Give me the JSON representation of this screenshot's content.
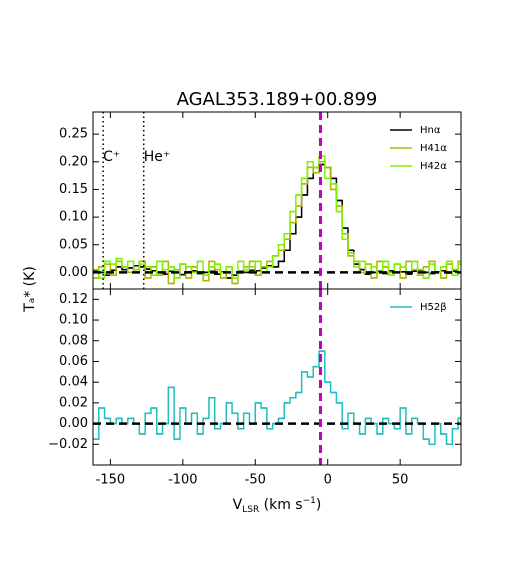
{
  "chart_data": [
    {
      "type": "step",
      "title": "AGAL353.189+00.899",
      "y_label": "Tₐ* (K)",
      "xlim": [
        -162,
        92
      ],
      "ylim": [
        -0.03,
        0.29
      ],
      "xticks": [
        -150,
        -100,
        -50,
        0,
        50
      ],
      "yticks": [
        {
          "value": 0,
          "label": "0.00"
        },
        {
          "value": 0.05,
          "label": "0.05"
        },
        {
          "value": 0.1,
          "label": "0.10"
        },
        {
          "value": 0.15,
          "label": "0.15"
        },
        {
          "value": 0.2,
          "label": "0.20"
        },
        {
          "value": 0.25,
          "label": "0.25"
        }
      ],
      "legend": "upper right",
      "vlines": [
        {
          "x": -155,
          "label": "C⁺"
        },
        {
          "x": -127,
          "label": "He⁺"
        }
      ],
      "reference_x": -5,
      "reference_y": 0,
      "x": [
        -160,
        -156,
        -152,
        -148,
        -144,
        -140,
        -136,
        -132,
        -128,
        -124,
        -120,
        -116,
        -112,
        -108,
        -104,
        -100,
        -96,
        -92,
        -88,
        -84,
        -80,
        -76,
        -72,
        -68,
        -64,
        -60,
        -56,
        -52,
        -48,
        -44,
        -40,
        -36,
        -32,
        -28,
        -24,
        -20,
        -16,
        -12,
        -8,
        -4,
        0,
        4,
        8,
        12,
        16,
        20,
        24,
        28,
        32,
        36,
        40,
        44,
        48,
        52,
        56,
        60,
        64,
        68,
        72,
        76,
        80,
        84,
        88,
        92
      ],
      "series": [
        {
          "name": "Hnα",
          "color": "#000000",
          "values": [
            0.003,
            0.0,
            -0.005,
            0.004,
            0.01,
            0.005,
            0.008,
            0.012,
            0.01,
            0.006,
            0.003,
            0.0,
            -0.003,
            0.002,
            0.0,
            -0.004,
            0.001,
            0.003,
            -0.002,
            0.0,
            0.002,
            -0.003,
            0.001,
            -0.01,
            -0.005,
            0.002,
            0.0,
            0.004,
            0.003,
            0.008,
            0.012,
            0.01,
            0.02,
            0.04,
            0.07,
            0.1,
            0.14,
            0.17,
            0.19,
            0.195,
            0.19,
            0.17,
            0.13,
            0.08,
            0.04,
            0.015,
            0.005,
            -0.003,
            0.0,
            0.002,
            -0.002,
            0.003,
            0.0,
            0.001,
            -0.003,
            0.002,
            0.004,
            0.0,
            -0.002,
            0.001,
            0.003,
            -0.001,
            0.002,
            0.0
          ]
        },
        {
          "name": "H41α",
          "color": "#b5b500",
          "values": [
            -0.01,
            0.01,
            0.015,
            -0.005,
            0.02,
            0.01,
            0.0,
            0.005,
            0.02,
            -0.01,
            0.01,
            -0.005,
            0.02,
            -0.02,
            0.005,
            0.015,
            -0.01,
            0.01,
            0.0,
            -0.015,
            0.02,
            0.005,
            -0.01,
            0.01,
            -0.02,
            0.0,
            0.01,
            0.02,
            -0.005,
            0.01,
            0.02,
            0.03,
            0.04,
            0.06,
            0.09,
            0.12,
            0.16,
            0.19,
            0.18,
            0.2,
            0.19,
            0.15,
            0.12,
            0.07,
            0.03,
            0.02,
            0.0,
            0.015,
            -0.01,
            0.02,
            0.01,
            0.0,
            0.015,
            -0.01,
            0.02,
            0.005,
            -0.005,
            0.01,
            0.02,
            0.0,
            -0.01,
            0.015,
            0.005,
            0.02
          ]
        },
        {
          "name": "H42α",
          "color": "#7ff000",
          "values": [
            0.005,
            -0.01,
            0.02,
            0.015,
            0.025,
            0.01,
            0.02,
            0.0,
            0.015,
            0.01,
            -0.005,
            0.02,
            0.005,
            0.01,
            -0.01,
            0.015,
            0.01,
            0.0,
            0.02,
            -0.005,
            0.01,
            0.015,
            0.0,
            0.01,
            -0.01,
            0.02,
            0.005,
            0.01,
            0.02,
            0.0,
            0.01,
            0.03,
            0.05,
            0.07,
            0.11,
            0.14,
            0.17,
            0.2,
            0.19,
            0.21,
            0.17,
            0.16,
            0.11,
            0.06,
            0.035,
            0.01,
            0.02,
            0.0,
            0.01,
            0.0,
            0.02,
            -0.005,
            0.015,
            0.01,
            0.0,
            0.02,
            0.005,
            -0.01,
            0.015,
            0.0,
            0.01,
            0.02,
            -0.005,
            0.015
          ]
        }
      ]
    },
    {
      "type": "step",
      "x_label": [
        "V",
        "LSR",
        " (km s",
        "−1",
        ")"
      ],
      "xlim": [
        -162,
        92
      ],
      "ylim": [
        -0.04,
        0.13
      ],
      "xticks": [
        -150,
        -100,
        -50,
        0,
        50
      ],
      "yticks": [
        {
          "value": -0.02,
          "label": "−0.02"
        },
        {
          "value": 0,
          "label": "0.00"
        },
        {
          "value": 0.02,
          "label": "0.02"
        },
        {
          "value": 0.04,
          "label": "0.04"
        },
        {
          "value": 0.06,
          "label": "0.06"
        },
        {
          "value": 0.08,
          "label": "0.08"
        },
        {
          "value": 0.1,
          "label": "0.10"
        },
        {
          "value": 0.12,
          "label": "0.12"
        }
      ],
      "legend": "upper right",
      "reference_x": -5,
      "reference_y": 0,
      "x": [
        -160,
        -156,
        -152,
        -148,
        -144,
        -140,
        -136,
        -132,
        -128,
        -124,
        -120,
        -116,
        -112,
        -108,
        -104,
        -100,
        -96,
        -92,
        -88,
        -84,
        -80,
        -76,
        -72,
        -68,
        -64,
        -60,
        -56,
        -52,
        -48,
        -44,
        -40,
        -36,
        -32,
        -28,
        -24,
        -20,
        -16,
        -12,
        -8,
        -4,
        0,
        4,
        8,
        12,
        16,
        20,
        24,
        28,
        32,
        36,
        40,
        44,
        48,
        52,
        56,
        60,
        64,
        68,
        72,
        76,
        80,
        84,
        88,
        92
      ],
      "series": [
        {
          "name": "H52β",
          "color": "#1fbfbf",
          "values": [
            -0.015,
            0.015,
            0.005,
            0.0,
            0.005,
            0.0,
            0.005,
            0.0,
            -0.01,
            0.01,
            0.015,
            -0.01,
            0.0,
            0.035,
            -0.015,
            0.015,
            0.0,
            0.01,
            -0.01,
            0.005,
            0.025,
            -0.005,
            0.0,
            0.02,
            0.01,
            -0.005,
            0.01,
            0.0,
            0.02,
            0.015,
            -0.005,
            0.0,
            0.005,
            0.02,
            0.025,
            0.03,
            0.05,
            0.045,
            0.055,
            0.07,
            0.04,
            0.03,
            0.02,
            -0.005,
            0.01,
            0.0,
            -0.01,
            0.005,
            0.0,
            -0.01,
            0.005,
            0.0,
            -0.005,
            0.015,
            -0.01,
            0.005,
            0.0,
            -0.015,
            -0.02,
            0.0,
            -0.01,
            -0.02,
            -0.005,
            0.005
          ]
        }
      ]
    }
  ]
}
